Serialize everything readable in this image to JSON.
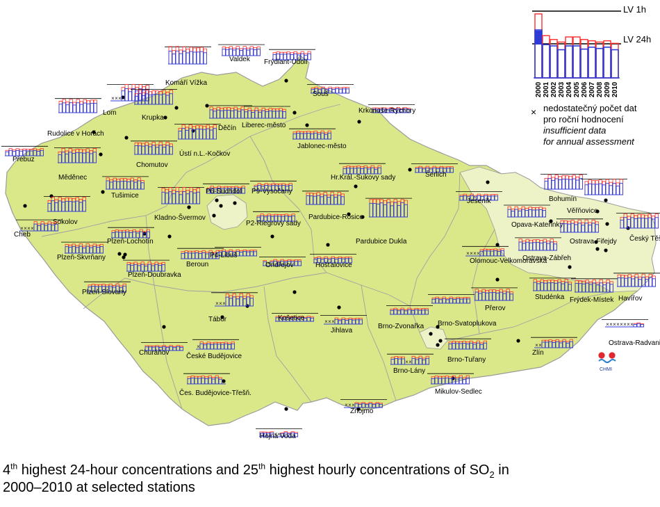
{
  "legend": {
    "lv1h": "LV 1h",
    "lv24h": "LV 24h",
    "years": [
      "2000",
      "2001",
      "2002",
      "2003",
      "2004",
      "2005",
      "2006",
      "2007",
      "2008",
      "2009",
      "2010"
    ],
    "cz_line1": "nedostatečný počet dat",
    "cz_line2": "pro roční hodnocení",
    "en_line1": "insufficient data",
    "en_line2": "for annual assessment",
    "sample_h24": [
      0.75,
      0.52,
      0.5,
      0.44,
      0.5,
      0.5,
      0.45,
      0.48,
      0.46,
      0.48,
      0.44
    ],
    "sample_h1": [
      1.0,
      0.66,
      0.6,
      0.56,
      0.64,
      0.64,
      0.6,
      0.58,
      0.56,
      0.58,
      0.54
    ]
  },
  "caption": {
    "p1": "4",
    "s1": "th",
    "p2": " highest 24-hour concentrations and 25",
    "s2": "th",
    "p3": " highest hourly concentrations of SO",
    "s3": "2",
    "p4": " in",
    "line2": "2000–2010 at selected stations"
  },
  "logo": {
    "text": "CHMI"
  },
  "colors": {
    "land": "#dbe88a",
    "land_light": "#eef3c7",
    "bar_24h": "#2f3bd6",
    "bar_1h": "#ff2a2a",
    "border": "#9a9a9a"
  },
  "stations": [
    {
      "name": "Valdek",
      "level": 0.45,
      "missing": []
    },
    {
      "name": "Frýdlant-Údolí",
      "level": 0.4,
      "missing": []
    },
    {
      "name": "Komáří Vížka",
      "level": 0.85,
      "missing": []
    },
    {
      "name": "Souš",
      "level": 0.3,
      "missing": []
    },
    {
      "name": "Krkonoše-Rýchory",
      "level": 0.25,
      "missing": []
    },
    {
      "name": "Lom",
      "level": 0.8,
      "missing": [
        0,
        1,
        2
      ]
    },
    {
      "name": "Krupka",
      "level": 0.7,
      "missing": []
    },
    {
      "name": "Děčín",
      "level": 0.55,
      "missing": []
    },
    {
      "name": "Liberec-město",
      "level": 0.5,
      "missing": []
    },
    {
      "name": "Rudolice v Horách",
      "level": 0.65,
      "missing": []
    },
    {
      "name": "Ústí n.L.-Kočkov",
      "level": 0.7,
      "missing": []
    },
    {
      "name": "Jablonec-město",
      "level": 0.4,
      "missing": []
    },
    {
      "name": "Přebuz",
      "level": 0.35,
      "missing": []
    },
    {
      "name": "Chomutov",
      "level": 0.6,
      "missing": []
    },
    {
      "name": "Měděnec",
      "level": 0.7,
      "missing": []
    },
    {
      "name": "Hr.Král.-Sukovy sady",
      "level": 0.4,
      "missing": []
    },
    {
      "name": "Šerlich",
      "level": 0.3,
      "missing": []
    },
    {
      "name": "P6-Suchdol",
      "level": 0.35,
      "missing": []
    },
    {
      "name": "P9-Vysočany",
      "level": 0.35,
      "missing": []
    },
    {
      "name": "Tušimice",
      "level": 0.55,
      "missing": []
    },
    {
      "name": "Kladno-Švermov",
      "level": 0.8,
      "missing": []
    },
    {
      "name": "Jeseník",
      "level": 0.3,
      "missing": []
    },
    {
      "name": "Bohumín",
      "level": 0.7,
      "missing": []
    },
    {
      "name": "Věřňovice",
      "level": 0.75,
      "missing": []
    },
    {
      "name": "Sokolov",
      "level": 0.7,
      "missing": []
    },
    {
      "name": "Pardubice-Rosice",
      "level": 0.6,
      "missing": []
    },
    {
      "name": "P2-Riegrovy sady",
      "level": 0.35,
      "missing": []
    },
    {
      "name": "Cheb",
      "level": 0.45,
      "missing": [
        0,
        1,
        2,
        3
      ]
    },
    {
      "name": "Plzeň-Lochotín",
      "level": 0.4,
      "missing": []
    },
    {
      "name": "Pardubice Dukla",
      "level": 0.95,
      "missing": []
    },
    {
      "name": "Opava-Kateřinky",
      "level": 0.5,
      "missing": []
    },
    {
      "name": "Ostrava-Fifejdy",
      "level": 0.6,
      "missing": []
    },
    {
      "name": "Český Těšín",
      "level": 0.7,
      "missing": []
    },
    {
      "name": "Plzeň-Skvrňany",
      "level": 0.45,
      "missing": []
    },
    {
      "name": "Beroun",
      "level": 0.4,
      "missing": []
    },
    {
      "name": "P4-Libuš",
      "level": 0.3,
      "missing": []
    },
    {
      "name": "Ondřejov",
      "level": 0.3,
      "missing": [
        1
      ]
    },
    {
      "name": "Hošťalovice",
      "level": 0.3,
      "missing": []
    },
    {
      "name": "Olomouc-Velkomoravská",
      "level": 0.35,
      "missing": [
        0,
        1,
        2,
        3
      ]
    },
    {
      "name": "Ostrava-Zábřeh",
      "level": 0.55,
      "missing": []
    },
    {
      "name": "Plzeň-Doubravka",
      "level": 0.45,
      "missing": []
    },
    {
      "name": "Plzeň-Slovany",
      "level": 0.4,
      "missing": []
    },
    {
      "name": "Studénka",
      "level": 0.55,
      "missing": []
    },
    {
      "name": "Frýdek-Místek",
      "level": 0.6,
      "missing": []
    },
    {
      "name": "Havířov",
      "level": 0.6,
      "missing": []
    },
    {
      "name": "Přerov",
      "level": 0.55,
      "missing": []
    },
    {
      "name": "Tábor",
      "level": 0.6,
      "missing": [
        0,
        1,
        2
      ]
    },
    {
      "name": "Košetice",
      "level": 0.25,
      "missing": []
    },
    {
      "name": "Jihlava",
      "level": 0.3,
      "missing": [
        0,
        1,
        2
      ]
    },
    {
      "name": "Brno-Svatoplukova",
      "level": 0.3,
      "missing": []
    },
    {
      "name": "Brno-Zvonařka",
      "level": 0.3,
      "missing": []
    },
    {
      "name": "Ostrava-Radvanice ZÚ",
      "level": 0.2,
      "missing": [
        0,
        1,
        2,
        3,
        4,
        5,
        6,
        7
      ]
    },
    {
      "name": "Churáňov",
      "level": 0.25,
      "missing": []
    },
    {
      "name": "České Budějovice",
      "level": 0.35,
      "missing": [
        0
      ]
    },
    {
      "name": "Zlín",
      "level": 0.4,
      "missing": [
        0,
        1
      ]
    },
    {
      "name": "Brno-Tuřany",
      "level": 0.4,
      "missing": []
    },
    {
      "name": "Brno-Lány",
      "level": 0.4,
      "missing": [
        4,
        5
      ]
    },
    {
      "name": "Čes. Budějovice-Třešň.",
      "level": 0.4,
      "missing": [
        10
      ]
    },
    {
      "name": "Mikulov-Sedlec",
      "level": 0.4,
      "missing": []
    },
    {
      "name": "Znojmo",
      "level": 0.25,
      "missing": [
        0,
        1,
        2
      ]
    },
    {
      "name": "Hojná Voda",
      "level": 0.25,
      "missing": [
        4,
        5
      ]
    }
  ]
}
